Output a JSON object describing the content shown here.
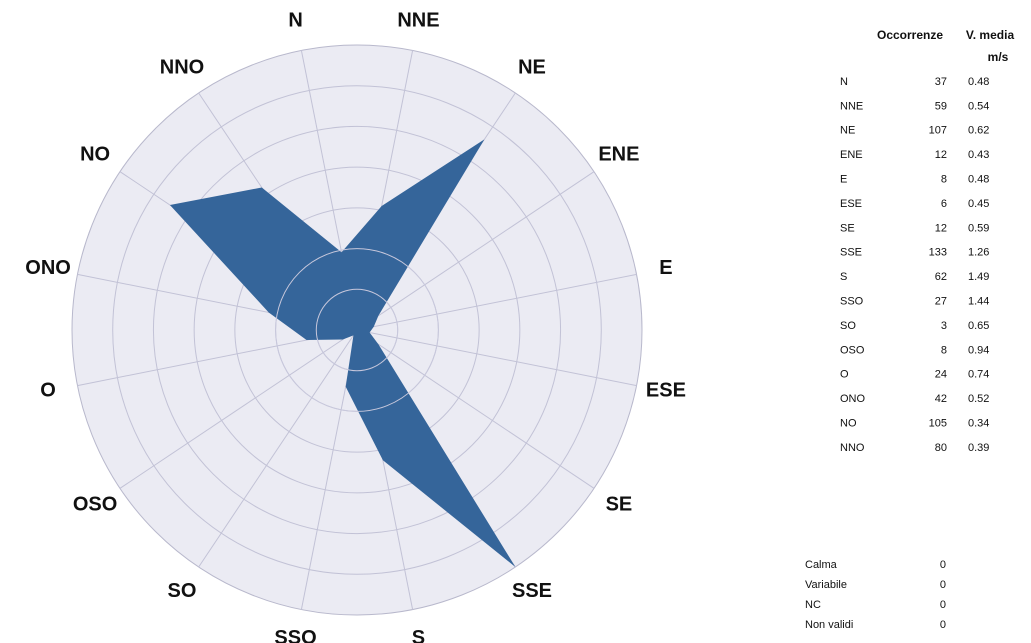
{
  "chart_data": {
    "type": "radar",
    "categories": [
      "N",
      "NNE",
      "NE",
      "ENE",
      "E",
      "ESE",
      "SE",
      "SSE",
      "S",
      "SSO",
      "SO",
      "OSO",
      "O",
      "ONO",
      "NO",
      "NNO"
    ],
    "series": [
      {
        "name": "Occorrenze",
        "color": "#35659a",
        "values": [
          37,
          59,
          107,
          12,
          8,
          6,
          12,
          133,
          62,
          27,
          3,
          8,
          24,
          42,
          105,
          80
        ]
      }
    ],
    "rlim": [
      0,
      133
    ]
  },
  "table": {
    "speed_header": "V. media",
    "speed_unit": "m/s",
    "speeds": [
      0.48,
      0.54,
      0.62,
      0.43,
      0.48,
      0.45,
      0.59,
      1.26,
      1.49,
      1.44,
      0.65,
      0.94,
      0.74,
      0.52,
      0.34,
      0.39
    ],
    "other": [
      {
        "label": "Calma",
        "value": 0
      },
      {
        "label": "Variabile",
        "value": 0
      },
      {
        "label": "NC",
        "value": 0
      },
      {
        "label": "Non validi",
        "value": 0
      }
    ]
  }
}
